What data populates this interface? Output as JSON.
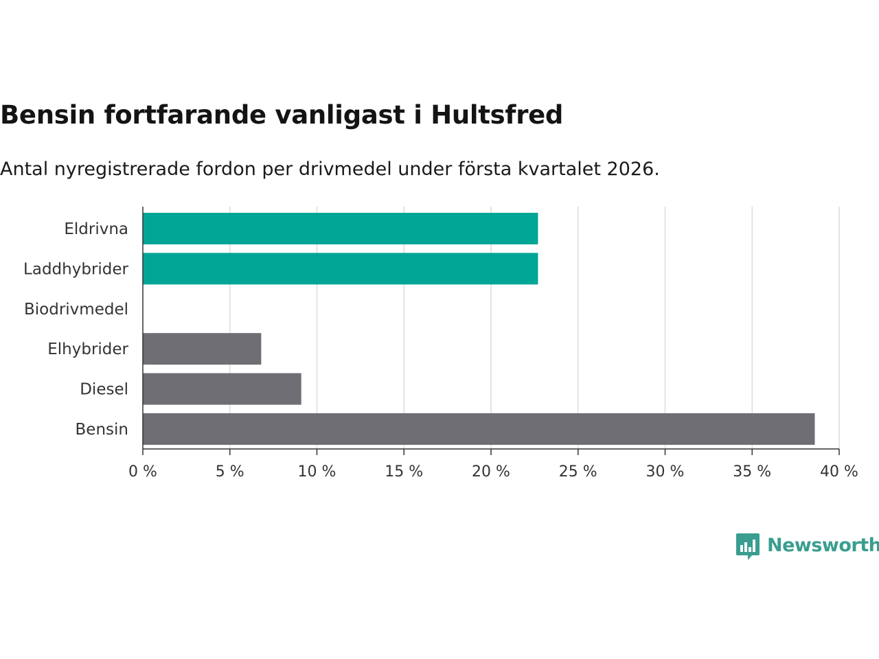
{
  "chart_data": {
    "type": "bar",
    "orientation": "horizontal",
    "title": "Bensin fortfarande vanligast i Hultsfred",
    "subtitle": "Antal nyregistrerade fordon per drivmedel under första kvartalet 2026.",
    "categories": [
      "Eldrivna",
      "Laddhybrider",
      "Biodrivmedel",
      "Elhybrider",
      "Diesel",
      "Bensin"
    ],
    "values": [
      22.7,
      22.7,
      0,
      6.8,
      9.1,
      38.6
    ],
    "bar_colors": [
      "#00a596",
      "#00a596",
      "#00a596",
      "#6f6e74",
      "#6f6e74",
      "#6f6e74"
    ],
    "xlim": [
      0,
      40
    ],
    "xticks": [
      0,
      5,
      10,
      15,
      20,
      25,
      30,
      35,
      40
    ],
    "xtick_labels": [
      "0 %",
      "5 %",
      "10 %",
      "15 %",
      "20 %",
      "25 %",
      "30 %",
      "35 %",
      "40 %"
    ],
    "xlabel": "",
    "ylabel": "",
    "grid": true
  },
  "branding": {
    "logo_text": "Newsworthy",
    "logo_icon": "newsworthy-chart-icon",
    "color": "#3a9d8f"
  }
}
